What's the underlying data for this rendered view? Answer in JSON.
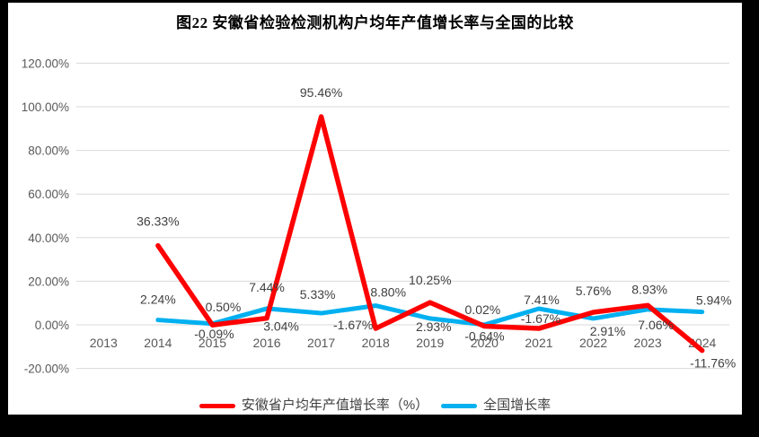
{
  "title": "图22  安徽省检验检测机构户均年产值增长率与全国的比较",
  "chart_data": {
    "type": "line",
    "title": "图22  安徽省检验检测机构户均年产值增长率与全国的比较",
    "categories": [
      "2013",
      "2014",
      "2015",
      "2016",
      "2017",
      "2018",
      "2019",
      "2020",
      "2021",
      "2022",
      "2023",
      "2024"
    ],
    "series": [
      {
        "name": "安徽省户均年产值增长率（%）",
        "color": "#FF0000",
        "stroke_width": 5.5,
        "values": [
          null,
          36.33,
          -0.09,
          3.04,
          95.46,
          -1.67,
          10.25,
          -0.64,
          -1.67,
          5.76,
          8.93,
          -11.76
        ],
        "label_offsets": [
          [
            0,
            0
          ],
          [
            0,
            -27
          ],
          [
            2,
            10
          ],
          [
            16,
            9
          ],
          [
            0,
            -27
          ],
          [
            -25,
            -4
          ],
          [
            0,
            -25
          ],
          [
            0,
            11
          ],
          [
            2,
            -11
          ],
          [
            0,
            -24
          ],
          [
            2,
            -18
          ],
          [
            12,
            14
          ]
        ]
      },
      {
        "name": "全国增长率",
        "color": "#00B0F0",
        "stroke_width": 5,
        "values": [
          null,
          2.24,
          0.5,
          7.44,
          5.33,
          8.8,
          2.93,
          0.02,
          7.41,
          2.91,
          7.06,
          5.94
        ],
        "label_offsets": [
          [
            0,
            0
          ],
          [
            0,
            -23
          ],
          [
            12,
            -19
          ],
          [
            0,
            -24
          ],
          [
            -4,
            -21
          ],
          [
            14,
            -15
          ],
          [
            4,
            9
          ],
          [
            -2,
            -17
          ],
          [
            3,
            -10
          ],
          [
            16,
            14
          ],
          [
            9,
            17
          ],
          [
            13,
            -13
          ]
        ]
      }
    ],
    "xlabel": "",
    "ylabel": "",
    "ylim": [
      -20,
      120
    ],
    "y_step": 20,
    "y_tick_labels": [
      "-20.00%",
      "0.00%",
      "20.00%",
      "40.00%",
      "60.00%",
      "80.00%",
      "100.00%",
      "120.00%"
    ],
    "value_suffix": "%",
    "grid": true,
    "legend_position": "bottom",
    "colors": {
      "gridline": "#D9D9D9",
      "axis_tick_text": "#595959",
      "data_label_text": "#3f3f3f",
      "background": "#FFFFFF",
      "frame": "#000000"
    }
  }
}
